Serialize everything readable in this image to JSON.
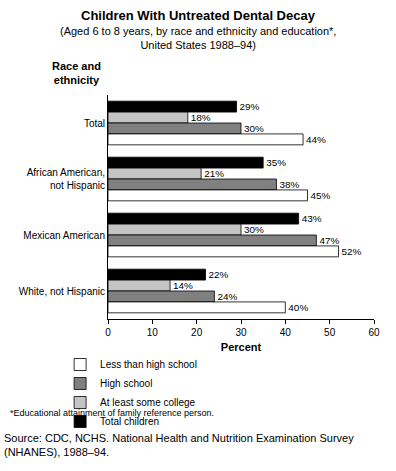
{
  "chart_data": {
    "type": "bar",
    "orientation": "horizontal",
    "title": "Children With Untreated Dental Decay",
    "subtitle": "(Aged 6 to 8 years, by race and ethnicity and education*, United States 1988–94)",
    "ylabel": "Race and ethnicity",
    "xlabel": "Percent",
    "categories": [
      "Total",
      "African American, not Hispanic",
      "Mexican American",
      "White, not Hispanic"
    ],
    "series": [
      {
        "name": "Less than high school",
        "color": "#ffffff",
        "values": [
          44,
          45,
          52,
          40
        ],
        "value_labels": [
          "44%",
          "45%",
          "52%",
          "40%"
        ]
      },
      {
        "name": "High school",
        "color": "#808080",
        "values": [
          30,
          38,
          47,
          24
        ],
        "value_labels": [
          "30%",
          "38%",
          "47%",
          "24%"
        ]
      },
      {
        "name": "At least some college",
        "color": "#c4c4c4",
        "values": [
          18,
          21,
          30,
          14
        ],
        "value_labels": [
          "18%",
          "21%",
          "30%",
          "14%"
        ]
      },
      {
        "name": "Total children",
        "color": "#000000",
        "values": [
          29,
          35,
          43,
          22
        ],
        "value_labels": [
          "29%",
          "35%",
          "43%",
          "22%"
        ]
      }
    ],
    "xlim": [
      0,
      60
    ],
    "xticks": [
      0,
      10,
      20,
      30,
      40,
      50,
      60
    ],
    "grid": false,
    "legend": "bottom",
    "data_labels": true,
    "footnote": "*Educational attainment of family reference person.",
    "source": "Source: CDC, NCHS. National Health and Nutrition Examination Survey (NHANES), 1988–94."
  }
}
